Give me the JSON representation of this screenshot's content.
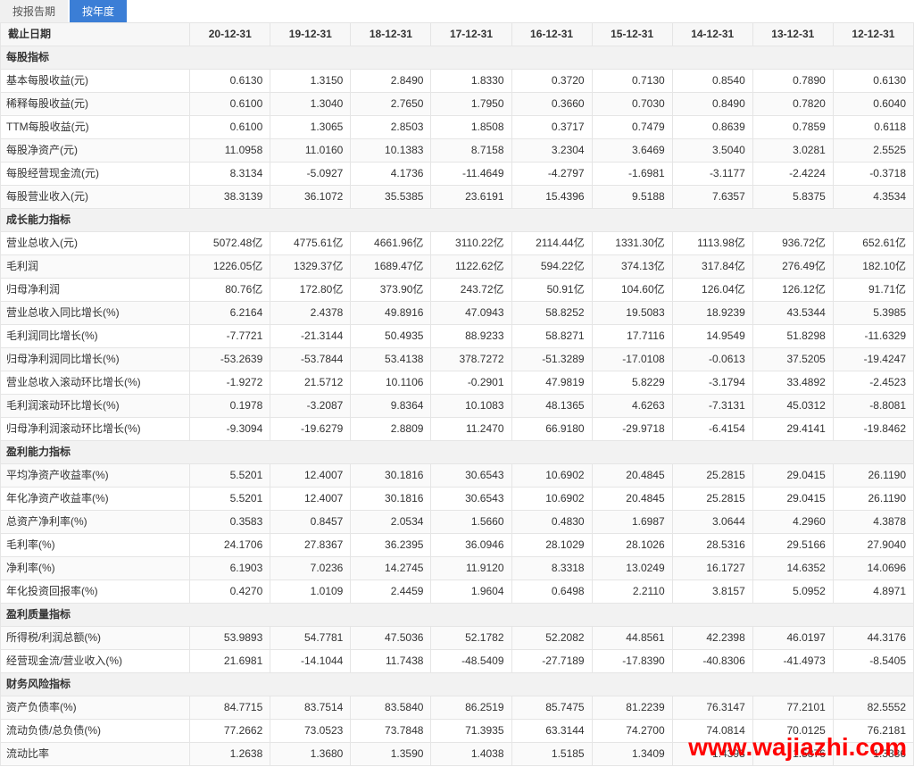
{
  "tabs": {
    "left": "按报告期",
    "right": "按年度"
  },
  "header": {
    "label": "截止日期",
    "dates": [
      "20-12-31",
      "19-12-31",
      "18-12-31",
      "17-12-31",
      "16-12-31",
      "15-12-31",
      "14-12-31",
      "13-12-31",
      "12-12-31"
    ]
  },
  "sections": [
    {
      "title": "每股指标",
      "rows": [
        {
          "label": "基本每股收益(元)",
          "v": [
            "0.6130",
            "1.3150",
            "2.8490",
            "1.8330",
            "0.3720",
            "0.7130",
            "0.8540",
            "0.7890",
            "0.6130"
          ]
        },
        {
          "label": "稀释每股收益(元)",
          "v": [
            "0.6100",
            "1.3040",
            "2.7650",
            "1.7950",
            "0.3660",
            "0.7030",
            "0.8490",
            "0.7820",
            "0.6040"
          ]
        },
        {
          "label": "TTM每股收益(元)",
          "v": [
            "0.6100",
            "1.3065",
            "2.8503",
            "1.8508",
            "0.3717",
            "0.7479",
            "0.8639",
            "0.7859",
            "0.6118"
          ]
        },
        {
          "label": "每股净资产(元)",
          "v": [
            "11.0958",
            "11.0160",
            "10.1383",
            "8.7158",
            "3.2304",
            "3.6469",
            "3.5040",
            "3.0281",
            "2.5525"
          ]
        },
        {
          "label": "每股经营现金流(元)",
          "v": [
            "8.3134",
            "-5.0927",
            "4.1736",
            "-11.4649",
            "-4.2797",
            "-1.6981",
            "-3.1177",
            "-2.4224",
            "-0.3718"
          ]
        },
        {
          "label": "每股营业收入(元)",
          "v": [
            "38.3139",
            "36.1072",
            "35.5385",
            "23.6191",
            "15.4396",
            "9.5188",
            "7.6357",
            "5.8375",
            "4.3534"
          ]
        }
      ]
    },
    {
      "title": "成长能力指标",
      "rows": [
        {
          "label": "营业总收入(元)",
          "v": [
            "5072.48亿",
            "4775.61亿",
            "4661.96亿",
            "3110.22亿",
            "2114.44亿",
            "1331.30亿",
            "1113.98亿",
            "936.72亿",
            "652.61亿"
          ]
        },
        {
          "label": "毛利润",
          "v": [
            "1226.05亿",
            "1329.37亿",
            "1689.47亿",
            "1122.62亿",
            "594.22亿",
            "374.13亿",
            "317.84亿",
            "276.49亿",
            "182.10亿"
          ]
        },
        {
          "label": "归母净利润",
          "v": [
            "80.76亿",
            "172.80亿",
            "373.90亿",
            "243.72亿",
            "50.91亿",
            "104.60亿",
            "126.04亿",
            "126.12亿",
            "91.71亿"
          ]
        },
        {
          "label": "营业总收入同比增长(%)",
          "v": [
            "6.2164",
            "2.4378",
            "49.8916",
            "47.0943",
            "58.8252",
            "19.5083",
            "18.9239",
            "43.5344",
            "5.3985"
          ]
        },
        {
          "label": "毛利润同比增长(%)",
          "v": [
            "-7.7721",
            "-21.3144",
            "50.4935",
            "88.9233",
            "58.8271",
            "17.7116",
            "14.9549",
            "51.8298",
            "-11.6329"
          ]
        },
        {
          "label": "归母净利润同比增长(%)",
          "v": [
            "-53.2639",
            "-53.7844",
            "53.4138",
            "378.7272",
            "-51.3289",
            "-17.0108",
            "-0.0613",
            "37.5205",
            "-19.4247"
          ]
        },
        {
          "label": "营业总收入滚动环比增长(%)",
          "v": [
            "-1.9272",
            "21.5712",
            "10.1106",
            "-0.2901",
            "47.9819",
            "5.8229",
            "-3.1794",
            "33.4892",
            "-2.4523"
          ]
        },
        {
          "label": "毛利润滚动环比增长(%)",
          "v": [
            "0.1978",
            "-3.2087",
            "9.8364",
            "10.1083",
            "48.1365",
            "4.6263",
            "-7.3131",
            "45.0312",
            "-8.8081"
          ]
        },
        {
          "label": "归母净利润滚动环比增长(%)",
          "v": [
            "-9.3094",
            "-19.6279",
            "2.8809",
            "11.2470",
            "66.9180",
            "-29.9718",
            "-6.4154",
            "29.4141",
            "-19.8462"
          ]
        }
      ]
    },
    {
      "title": "盈利能力指标",
      "rows": [
        {
          "label": "平均净资产收益率(%)",
          "v": [
            "5.5201",
            "12.4007",
            "30.1816",
            "30.6543",
            "10.6902",
            "20.4845",
            "25.2815",
            "29.0415",
            "26.1190"
          ]
        },
        {
          "label": "年化净资产收益率(%)",
          "v": [
            "5.5201",
            "12.4007",
            "30.1816",
            "30.6543",
            "10.6902",
            "20.4845",
            "25.2815",
            "29.0415",
            "26.1190"
          ]
        },
        {
          "label": "总资产净利率(%)",
          "v": [
            "0.3583",
            "0.8457",
            "2.0534",
            "1.5660",
            "0.4830",
            "1.6987",
            "3.0644",
            "4.2960",
            "4.3878"
          ]
        },
        {
          "label": "毛利率(%)",
          "v": [
            "24.1706",
            "27.8367",
            "36.2395",
            "36.0946",
            "28.1029",
            "28.1026",
            "28.5316",
            "29.5166",
            "27.9040"
          ]
        },
        {
          "label": "净利率(%)",
          "v": [
            "6.1903",
            "7.0236",
            "14.2745",
            "11.9120",
            "8.3318",
            "13.0249",
            "16.1727",
            "14.6352",
            "14.0696"
          ]
        },
        {
          "label": "年化投资回报率(%)",
          "v": [
            "0.4270",
            "1.0109",
            "2.4459",
            "1.9604",
            "0.6498",
            "2.2110",
            "3.8157",
            "5.0952",
            "4.8971"
          ]
        }
      ]
    },
    {
      "title": "盈利质量指标",
      "rows": [
        {
          "label": "所得税/利润总额(%)",
          "v": [
            "53.9893",
            "54.7781",
            "47.5036",
            "52.1782",
            "52.2082",
            "44.8561",
            "42.2398",
            "46.0197",
            "44.3176"
          ]
        },
        {
          "label": "经营现金流/营业收入(%)",
          "v": [
            "21.6981",
            "-14.1044",
            "11.7438",
            "-48.5409",
            "-27.7189",
            "-17.8390",
            "-40.8306",
            "-41.4973",
            "-8.5405"
          ]
        }
      ]
    },
    {
      "title": "财务风险指标",
      "rows": [
        {
          "label": "资产负债率(%)",
          "v": [
            "84.7715",
            "83.7514",
            "83.5840",
            "86.2519",
            "85.7475",
            "81.2239",
            "76.3147",
            "77.2101",
            "82.5552"
          ]
        },
        {
          "label": "流动负债/总负债(%)",
          "v": [
            "77.2662",
            "73.0523",
            "73.7848",
            "71.3935",
            "63.3144",
            "74.2700",
            "74.0814",
            "70.0125",
            "76.2181"
          ]
        },
        {
          "label": "流动比率",
          "v": [
            "1.2638",
            "1.3680",
            "1.3590",
            "1.4038",
            "1.5185",
            "1.3409",
            "1.4393",
            "1.5876",
            "1.3336"
          ]
        }
      ]
    }
  ],
  "watermark": "www.wajiazhi.com",
  "colors": {
    "header_bg": "#f7f7f7",
    "section_bg": "#f2f2f2",
    "border": "#e5e5e5",
    "tab_active_bg": "#3b7ed6",
    "tab_active_fg": "#ffffff",
    "watermark": "#ff0000"
  }
}
